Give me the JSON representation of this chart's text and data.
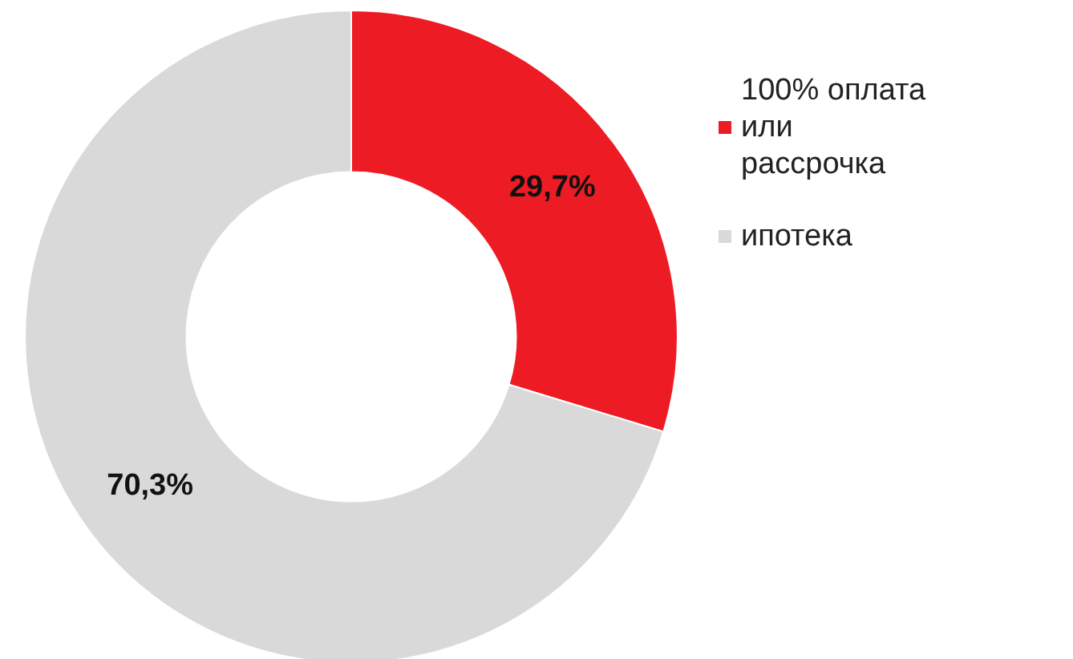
{
  "chart_data": {
    "type": "donut",
    "categories": [
      "100% оплата или рассрочка",
      "ипотека"
    ],
    "values": [
      29.7,
      70.3
    ],
    "colors": [
      "#ed1c24",
      "#d9d9d9"
    ],
    "value_labels": [
      "29,7%",
      "70,3%"
    ],
    "legend": "top right"
  }
}
